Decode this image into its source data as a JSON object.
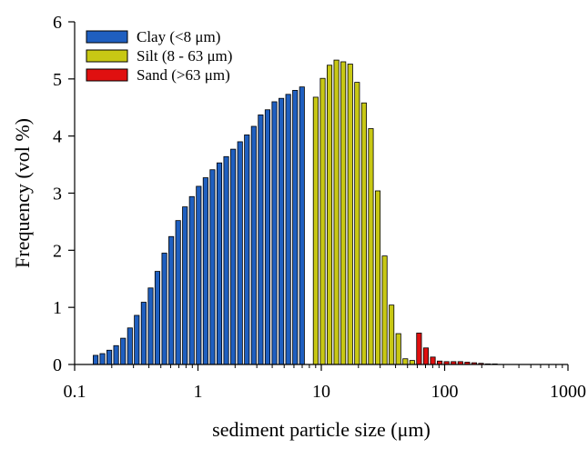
{
  "chart_data": {
    "type": "bar",
    "title": "",
    "xlabel": "sediment particle size (μm)",
    "ylabel": "Frequency (vol %)",
    "xscale": "log",
    "xlim": [
      0.1,
      1000
    ],
    "ylim": [
      0,
      6
    ],
    "xticks": [
      0.1,
      1,
      10,
      100,
      1000
    ],
    "xtick_labels": [
      "0.1",
      "1",
      "10",
      "100",
      "1000"
    ],
    "yticks": [
      0,
      1,
      2,
      3,
      4,
      5,
      6
    ],
    "ytick_labels": [
      "0",
      "1",
      "2",
      "3",
      "4",
      "5",
      "6"
    ],
    "grid": false,
    "legend_position": "top-left",
    "series": [
      {
        "name": "Clay (<8 μm)",
        "color": "#1f5fc0",
        "x": [
          0.148,
          0.168,
          0.191,
          0.217,
          0.247,
          0.281,
          0.319,
          0.363,
          0.413,
          0.469,
          0.534,
          0.607,
          0.69,
          0.784,
          0.892,
          1.014,
          1.153,
          1.311,
          1.491,
          1.695,
          1.928,
          2.193,
          2.493,
          2.835,
          3.224,
          3.666,
          4.169,
          4.741,
          5.391,
          6.131,
          6.972
        ],
        "values": [
          0.16,
          0.19,
          0.25,
          0.33,
          0.46,
          0.64,
          0.86,
          1.09,
          1.34,
          1.63,
          1.95,
          2.24,
          2.52,
          2.76,
          2.94,
          3.12,
          3.27,
          3.41,
          3.53,
          3.64,
          3.77,
          3.9,
          4.02,
          4.17,
          4.37,
          4.46,
          4.6,
          4.66,
          4.73,
          4.8,
          4.86
        ]
      },
      {
        "name": "Silt (8 - 63 μm)",
        "color": "#c8c814",
        "x": [
          9.01,
          10.26,
          11.66,
          13.26,
          15.08,
          17.15,
          19.5,
          22.18,
          25.22,
          28.68,
          32.62,
          37.09,
          42.18,
          47.97,
          54.55
        ],
        "values": [
          4.68,
          5.01,
          5.24,
          5.33,
          5.3,
          5.26,
          4.94,
          4.58,
          4.13,
          3.04,
          1.9,
          1.04,
          0.54,
          0.1,
          0.07
        ]
      },
      {
        "name": "Sand (>63 μm)",
        "color": "#e01010",
        "x": [
          62.0,
          70.5,
          80.2,
          91.2,
          103.7,
          118.0,
          134.2,
          152.6,
          173.5,
          197.3,
          224.4,
          255.2
        ],
        "values": [
          0.55,
          0.29,
          0.13,
          0.06,
          0.05,
          0.05,
          0.05,
          0.04,
          0.03,
          0.02,
          0.01,
          0.005
        ]
      }
    ]
  }
}
